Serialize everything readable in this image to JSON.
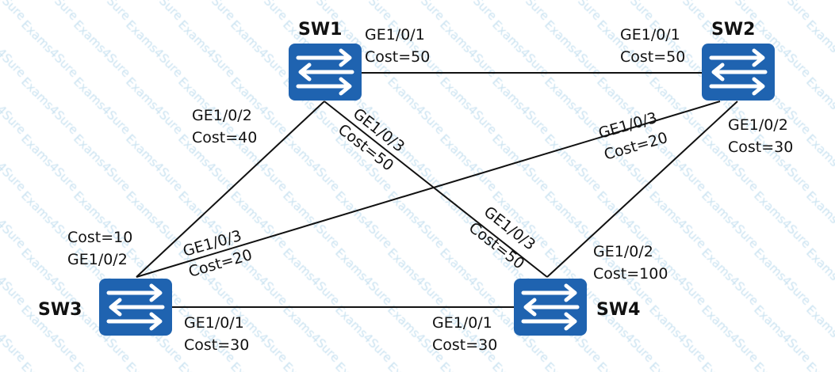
{
  "watermark": "Exams4Sure",
  "colors": {
    "switch": "#1f63b0",
    "line": "#111111",
    "watermark": "#b9d9ec"
  },
  "switches": [
    {
      "id": "sw1",
      "name": "SW1",
      "icon": "switch-icon"
    },
    {
      "id": "sw2",
      "name": "SW2",
      "icon": "switch-icon"
    },
    {
      "id": "sw3",
      "name": "SW3",
      "icon": "switch-icon"
    },
    {
      "id": "sw4",
      "name": "SW4",
      "icon": "switch-icon"
    }
  ],
  "links": [
    {
      "from": "SW1",
      "to": "SW2",
      "a_port": "GE1/0/1",
      "a_cost": "Cost=50",
      "b_port": "GE1/0/1",
      "b_cost": "Cost=50"
    },
    {
      "from": "SW1",
      "to": "SW3",
      "a_port": "GE1/0/2",
      "a_cost": "Cost=40",
      "b_port": "GE1/0/2",
      "b_cost": "Cost=10"
    },
    {
      "from": "SW1",
      "to": "SW4",
      "a_port": "GE1/0/3",
      "a_cost": "Cost=50",
      "b_port": "GE1/0/3",
      "b_cost": "Cost=50"
    },
    {
      "from": "SW2",
      "to": "SW3",
      "a_port": "GE1/0/3",
      "a_cost": "Cost=20",
      "b_port": "GE1/0/3",
      "b_cost": "Cost=20"
    },
    {
      "from": "SW2",
      "to": "SW4",
      "a_port": "GE1/0/2",
      "a_cost": "Cost=30",
      "b_port": "GE1/0/2",
      "b_cost": "Cost=100"
    },
    {
      "from": "SW3",
      "to": "SW4",
      "a_port": "GE1/0/1",
      "a_cost": "Cost=30",
      "b_port": "GE1/0/1",
      "b_cost": "Cost=30"
    }
  ]
}
